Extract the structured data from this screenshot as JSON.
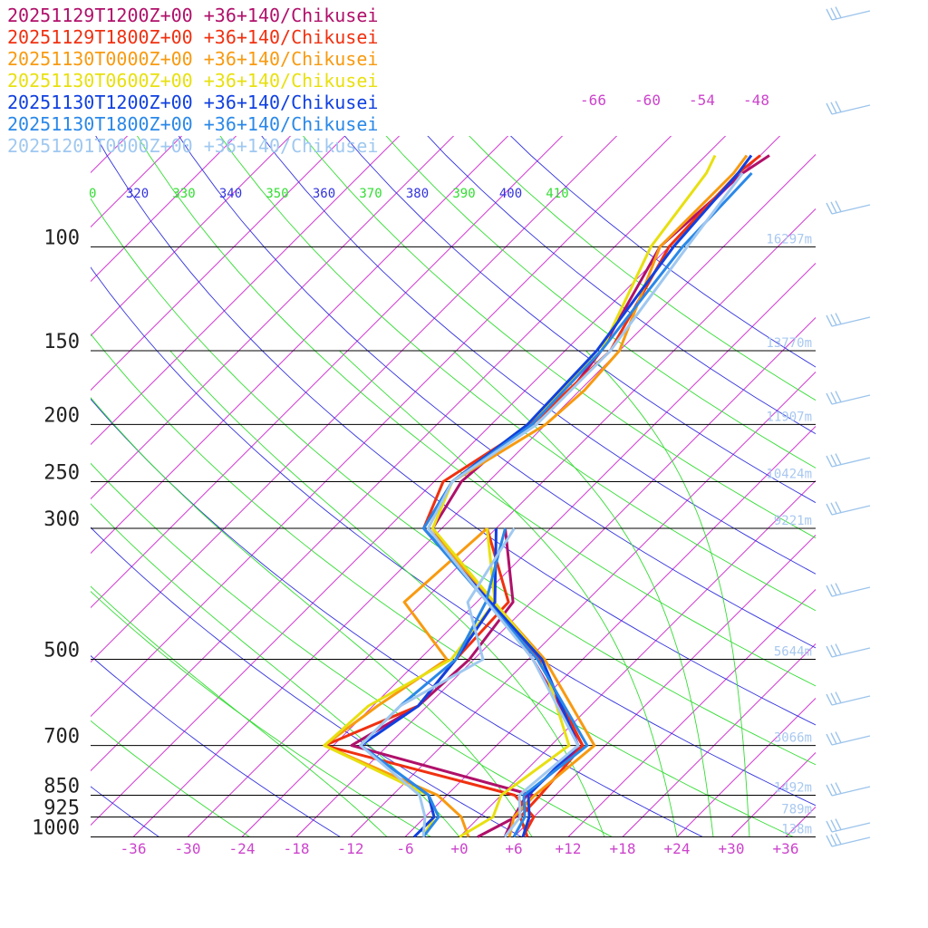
{
  "chart_data": {
    "type": "line",
    "title": "",
    "legend": [
      {
        "label": "20251129T1200Z+00 +36+140/Chikusei",
        "color": "#b0106a"
      },
      {
        "label": "20251129T1800Z+00 +36+140/Chikusei",
        "color": "#f03010"
      },
      {
        "label": "20251130T0000Z+00 +36+140/Chikusei",
        "color": "#f89a10"
      },
      {
        "label": "20251130T0600Z+00 +36+140/Chikusei",
        "color": "#e8e010"
      },
      {
        "label": "20251130T1200Z+00 +36+140/Chikusei",
        "color": "#1040e0"
      },
      {
        "label": "20251130T1800Z+00 +36+140/Chikusei",
        "color": "#2a88e8"
      },
      {
        "label": "20251201T0000Z+00 +36+140/Chikusei",
        "color": "#a0c8f0"
      }
    ],
    "pressure_levels": [
      {
        "label": "100",
        "p": 100,
        "height": "16297m"
      },
      {
        "label": "150",
        "p": 150,
        "height": "13770m"
      },
      {
        "label": "200",
        "p": 200,
        "height": "11907m"
      },
      {
        "label": "250",
        "p": 250,
        "height": "10424m"
      },
      {
        "label": "300",
        "p": 300,
        "height": "9221m"
      },
      {
        "label": "500",
        "p": 500,
        "height": "5644m"
      },
      {
        "label": "700",
        "p": 700,
        "height": "3066m"
      },
      {
        "label": "850",
        "p": 850,
        "height": "1492m"
      },
      {
        "label": "925",
        "p": 925,
        "height": "789m"
      },
      {
        "label": "1000",
        "p": 1000,
        "height": "138m"
      }
    ],
    "x_tick_labels": [
      "-36",
      "-30",
      "-24",
      "-18",
      "-12",
      "-6",
      "+0",
      "+6",
      "+12",
      "+18",
      "+24",
      "+30",
      "+36"
    ],
    "isotherm_labels": [
      "-66",
      "-60",
      "-54",
      "-48"
    ],
    "theta_labels": [
      {
        "text": "0",
        "color": "green"
      },
      {
        "text": "320",
        "color": "blue"
      },
      {
        "text": "330",
        "color": "green"
      },
      {
        "text": "340",
        "color": "blue"
      },
      {
        "text": "350",
        "color": "green"
      },
      {
        "text": "360",
        "color": "blue"
      },
      {
        "text": "370",
        "color": "green"
      },
      {
        "text": "380",
        "color": "blue"
      },
      {
        "text": "390",
        "color": "green"
      },
      {
        "text": "400",
        "color": "blue"
      },
      {
        "text": "410",
        "color": "green"
      }
    ],
    "colors": {
      "isotherm": "#cc22cc",
      "dry_adiabat": "#3333dd",
      "moist_adiabat": "#33dd33",
      "isobar": "#000000",
      "label_magenta": "#cc44cc",
      "height_label": "#a8c8f0",
      "wind_barb": "#9cc4ec"
    },
    "series": [
      {
        "name": "20251129T1200Z+00 +36+140/Chikusei",
        "temperature": [
          [
            1000,
            5
          ],
          [
            925,
            3.8
          ],
          [
            850,
            2.8
          ],
          [
            700,
            3.5
          ],
          [
            500,
            -11.5
          ],
          [
            300,
            -37
          ],
          [
            250,
            -39
          ],
          [
            200,
            -38
          ],
          [
            175,
            -37
          ],
          [
            150,
            -38
          ],
          [
            100,
            -43
          ],
          [
            75,
            -42
          ],
          [
            70,
            -41
          ]
        ],
        "dewpoint": [
          [
            1000,
            2
          ],
          [
            925,
            4
          ],
          [
            850,
            3.5
          ],
          [
            700,
            -22
          ],
          [
            600,
            -19
          ],
          [
            500,
            -18.5
          ],
          [
            400,
            -20
          ],
          [
            300,
            -29
          ]
        ]
      },
      {
        "name": "20251129T1800Z+00 +36+140/Chikusei",
        "temperature": [
          [
            1000,
            7.5
          ],
          [
            925,
            4.5
          ],
          [
            850,
            4.3
          ],
          [
            700,
            3.5
          ],
          [
            500,
            -10.8
          ],
          [
            300,
            -38
          ],
          [
            250,
            -41
          ],
          [
            200,
            -37.5
          ],
          [
            150,
            -37
          ],
          [
            100,
            -42
          ],
          [
            75,
            -42.5
          ],
          [
            70,
            -42
          ]
        ],
        "dewpoint": [
          [
            1000,
            7
          ],
          [
            925,
            6
          ],
          [
            850,
            1.5
          ],
          [
            700,
            -25
          ],
          [
            600,
            -19
          ],
          [
            500,
            -20
          ],
          [
            400,
            -20.5
          ],
          [
            300,
            -31
          ]
        ]
      },
      {
        "name": "20251130T0000Z+00 +36+140/Chikusei",
        "temperature": [
          [
            1000,
            5.5
          ],
          [
            925,
            3.8
          ],
          [
            850,
            3.7
          ],
          [
            700,
            4.8
          ],
          [
            500,
            -10.2
          ],
          [
            300,
            -37.5
          ],
          [
            250,
            -40
          ],
          [
            200,
            -36
          ],
          [
            175,
            -35.5
          ],
          [
            150,
            -36
          ],
          [
            100,
            -43
          ],
          [
            75,
            -43
          ],
          [
            70,
            -43.5
          ]
        ],
        "dewpoint": [
          [
            1000,
            1
          ],
          [
            925,
            -2
          ],
          [
            850,
            -7
          ],
          [
            700,
            -25
          ],
          [
            600,
            -23.5
          ],
          [
            500,
            -21
          ],
          [
            400,
            -32
          ],
          [
            300,
            -31
          ]
        ]
      },
      {
        "name": "20251130T0600Z+00 +36+140/Chikusei",
        "temperature": [
          [
            1000,
            0
          ],
          [
            925,
            1.5
          ],
          [
            850,
            0
          ],
          [
            700,
            2
          ],
          [
            500,
            -10.5
          ],
          [
            300,
            -37
          ],
          [
            250,
            -40
          ],
          [
            200,
            -38
          ],
          [
            150,
            -38
          ],
          [
            100,
            -44
          ],
          [
            75,
            -46
          ],
          [
            70,
            -47
          ]
        ],
        "dewpoint": [
          [
            1000,
            -4
          ],
          [
            925,
            -5
          ],
          [
            850,
            -8
          ],
          [
            700,
            -25
          ],
          [
            600,
            -24.5
          ],
          [
            500,
            -20.5
          ],
          [
            400,
            -22
          ],
          [
            300,
            -31
          ]
        ]
      },
      {
        "name": "20251130T1200Z+00 +36+140/Chikusei",
        "temperature": [
          [
            1000,
            7
          ],
          [
            925,
            5.5
          ],
          [
            850,
            3
          ],
          [
            700,
            3
          ],
          [
            500,
            -10.5
          ],
          [
            300,
            -38
          ],
          [
            250,
            -40
          ],
          [
            200,
            -38
          ],
          [
            150,
            -38.5
          ],
          [
            100,
            -41.5
          ],
          [
            75,
            -42.5
          ],
          [
            70,
            -43
          ]
        ],
        "dewpoint": [
          [
            1000,
            -5
          ],
          [
            925,
            -5
          ],
          [
            850,
            -8
          ],
          [
            700,
            -21
          ],
          [
            600,
            -19
          ],
          [
            500,
            -20
          ],
          [
            400,
            -22
          ],
          [
            300,
            -30
          ]
        ]
      },
      {
        "name": "20251130T1800Z+00 +36+140/Chikusei",
        "temperature": [
          [
            1000,
            6
          ],
          [
            925,
            5
          ],
          [
            850,
            2.5
          ],
          [
            700,
            4
          ],
          [
            500,
            -11
          ],
          [
            300,
            -38
          ],
          [
            250,
            -40
          ],
          [
            200,
            -37.5
          ],
          [
            150,
            -38
          ],
          [
            100,
            -40.5
          ],
          [
            75,
            -41
          ]
        ],
        "dewpoint": [
          [
            1000,
            -4
          ],
          [
            925,
            -4.5
          ],
          [
            850,
            -8
          ],
          [
            700,
            -21
          ],
          [
            600,
            -21
          ],
          [
            500,
            -20
          ],
          [
            400,
            -23
          ],
          [
            300,
            -29
          ]
        ]
      },
      {
        "name": "20251201T0000Z+00 +36+140/Chikusei",
        "temperature": [
          [
            1000,
            5
          ],
          [
            925,
            4.5
          ],
          [
            850,
            2
          ],
          [
            700,
            3
          ],
          [
            500,
            -11.5
          ],
          [
            300,
            -37.5
          ],
          [
            250,
            -40
          ],
          [
            200,
            -37
          ],
          [
            150,
            -37
          ],
          [
            100,
            -40
          ],
          [
            75,
            -42
          ]
        ],
        "dewpoint": [
          [
            1000,
            -4
          ],
          [
            925,
            -6
          ],
          [
            850,
            -9
          ],
          [
            700,
            -21
          ],
          [
            600,
            -21
          ],
          [
            500,
            -17
          ],
          [
            400,
            -25
          ],
          [
            300,
            -28
          ]
        ]
      }
    ]
  }
}
